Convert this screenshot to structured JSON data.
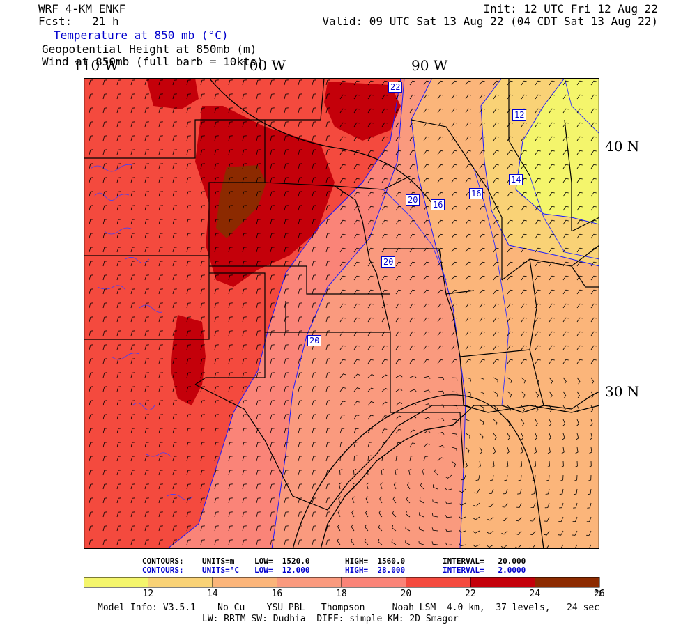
{
  "header": {
    "model_name": "WRF 4-KM ENKF",
    "forecast": "Fcst:   21 h",
    "fields": {
      "temperature": "Temperature at 850 mb (°C)",
      "height": "Geopotential Height at 850mb (m)",
      "wind": "Wind at 850mb (full barb = 10kts)"
    },
    "init": "Init: 12 UTC Fri 12 Aug 22",
    "valid": "Valid: 09 UTC Sat 13 Aug 22 (04 CDT Sat 13 Aug 22)"
  },
  "map": {
    "lon_labels": [
      "110 W",
      "100 W",
      "90 W"
    ],
    "lat_labels": [
      "40 N",
      "30 N"
    ],
    "contour_labels": [
      "22",
      "12",
      "20",
      "16",
      "16",
      "14",
      "20",
      "20"
    ],
    "colors": {
      "t12_14": "#f4f56c",
      "t14_16": "#f9d276",
      "t16_18": "#fbb57a",
      "t18_20": "#fa9a7e",
      "t20_22": "#fa8478",
      "t22_24": "#f44a3e",
      "t24_26": "#c4000a",
      "t26_28": "#8c2a00"
    }
  },
  "contour_info": {
    "height": {
      "label": "CONTOURS:",
      "units": "UNITS=m",
      "low": "LOW=  1520.0",
      "high": "HIGH=  1560.0",
      "interval": "INTERVAL=   20.000"
    },
    "temp": {
      "label": "CONTOURS:",
      "units": "UNITS=°C",
      "low": "LOW=  12.000",
      "high": "HIGH=  28.000",
      "interval": "INTERVAL=   2.0000"
    }
  },
  "colorbar": {
    "colors": [
      "#f4f56c",
      "#f9d276",
      "#fbb57a",
      "#fa9a7e",
      "#fa8478",
      "#f44a3e",
      "#c4000a",
      "#8c2a00"
    ],
    "ticks": [
      "12",
      "14",
      "16",
      "18",
      "20",
      "22",
      "24",
      "26"
    ],
    "unit": "°C"
  },
  "model_info": {
    "line1": "Model Info: V3.5.1    No Cu    YSU PBL   Thompson     Noah LSM  4.0 km,  37 levels,   24 sec",
    "line2": "LW: RRTM SW: Dudhia  DIFF: simple KM: 2D Smagor"
  }
}
